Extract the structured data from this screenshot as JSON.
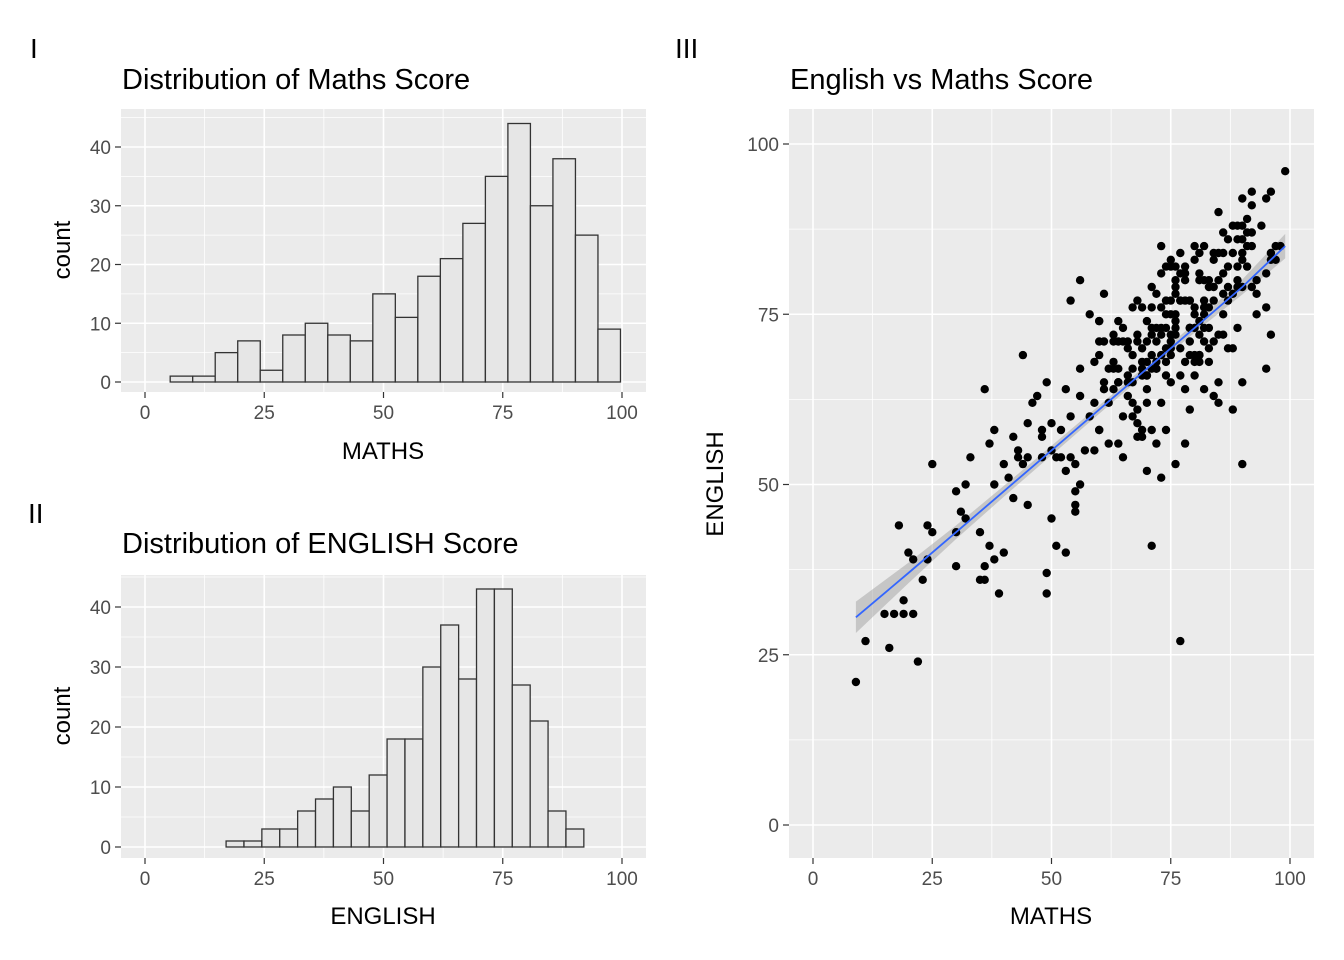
{
  "tags": [
    "I",
    "II",
    "III"
  ],
  "chart_data": [
    {
      "type": "bar",
      "subtype": "histogram",
      "tag": "I",
      "title": "Distribution of Maths Score",
      "xlabel": "MATHS",
      "ylabel": "count",
      "xlim": [
        0,
        100
      ],
      "ylim": [
        0,
        44
      ],
      "x_ticks": [
        0,
        25,
        50,
        75,
        100
      ],
      "y_ticks": [
        0,
        10,
        20,
        30,
        40
      ],
      "bin_width": 4.72,
      "bin_starts": [
        5.28,
        10.0,
        14.72,
        19.44,
        24.16,
        28.88,
        33.6,
        38.32,
        43.04,
        47.76,
        52.48,
        57.2,
        61.92,
        66.64,
        71.36,
        76.08,
        80.8,
        85.52,
        90.24,
        94.96
      ],
      "values": [
        1,
        1,
        5,
        7,
        2,
        8,
        10,
        8,
        7,
        15,
        11,
        18,
        21,
        27,
        35,
        44,
        30,
        38,
        25,
        9
      ],
      "fill": "#e6e6e6",
      "outline": "#333333",
      "grid": true,
      "legend": "none"
    },
    {
      "type": "bar",
      "subtype": "histogram",
      "tag": "II",
      "title": "Distribution of ENGLISH Score",
      "xlabel": "ENGLISH",
      "ylabel": "count",
      "xlim": [
        0,
        100
      ],
      "ylim": [
        0,
        43
      ],
      "x_ticks": [
        0,
        25,
        50,
        75,
        100
      ],
      "y_ticks": [
        0,
        10,
        20,
        30,
        40
      ],
      "bin_width": 3.75,
      "bin_starts": [
        17.0,
        20.75,
        24.5,
        28.25,
        32.0,
        35.75,
        39.5,
        43.25,
        47.0,
        50.75,
        54.5,
        58.25,
        62.0,
        65.75,
        69.5,
        73.25,
        77.0,
        80.75,
        84.5,
        88.25,
        92.0
      ],
      "values": [
        1,
        1,
        3,
        3,
        6,
        8,
        10,
        6,
        12,
        18,
        18,
        30,
        37,
        28,
        43,
        43,
        27,
        21,
        6,
        3,
        0
      ],
      "fill": "#e6e6e6",
      "outline": "#333333",
      "grid": true,
      "legend": "none"
    },
    {
      "type": "scatter",
      "tag": "III",
      "title": "English vs Maths Score",
      "xlabel": "MATHS",
      "ylabel": "ENGLISH",
      "xlim": [
        0,
        100
      ],
      "ylim": [
        0,
        100
      ],
      "x_ticks": [
        0,
        25,
        50,
        75,
        100
      ],
      "y_ticks": [
        0,
        25,
        50,
        75,
        100
      ],
      "point_color": "#000000",
      "trend_color": "#3366ff",
      "ribbon_color": "#999999",
      "grid": true,
      "legend": "none",
      "trend": {
        "x": [
          9,
          20,
          30,
          40,
          50,
          60,
          70,
          80,
          90,
          99
        ],
        "y": [
          30.5,
          37.0,
          43.0,
          49.0,
          55.0,
          61.0,
          67.0,
          73.0,
          79.0,
          85.0
        ],
        "lower": [
          28.2,
          35.5,
          42.0,
          48.2,
          54.3,
          60.4,
          66.4,
          72.3,
          77.9,
          83.2
        ],
        "upper": [
          32.8,
          38.5,
          44.0,
          49.8,
          55.7,
          61.6,
          67.6,
          73.7,
          80.1,
          86.8
        ]
      },
      "points": [
        [
          9,
          21
        ],
        [
          11,
          27
        ],
        [
          15,
          31
        ],
        [
          16,
          26
        ],
        [
          17,
          31
        ],
        [
          18,
          44
        ],
        [
          19,
          33
        ],
        [
          19,
          31
        ],
        [
          20,
          40
        ],
        [
          21,
          31
        ],
        [
          21,
          39
        ],
        [
          22,
          24
        ],
        [
          23,
          36
        ],
        [
          24,
          39
        ],
        [
          24,
          44
        ],
        [
          25,
          53
        ],
        [
          25,
          43
        ],
        [
          30,
          49
        ],
        [
          30,
          38
        ],
        [
          30,
          43
        ],
        [
          31,
          46
        ],
        [
          32,
          50
        ],
        [
          32,
          45
        ],
        [
          33,
          54
        ],
        [
          35,
          43
        ],
        [
          35,
          36
        ],
        [
          36,
          64
        ],
        [
          36,
          38
        ],
        [
          36,
          36
        ],
        [
          37,
          56
        ],
        [
          37,
          41
        ],
        [
          38,
          50
        ],
        [
          38,
          58
        ],
        [
          38,
          39
        ],
        [
          39,
          34
        ],
        [
          40,
          53
        ],
        [
          40,
          40
        ],
        [
          41,
          51
        ],
        [
          42,
          48
        ],
        [
          42,
          57
        ],
        [
          43,
          55
        ],
        [
          43,
          54
        ],
        [
          44,
          53
        ],
        [
          44,
          69
        ],
        [
          45,
          54
        ],
        [
          45,
          59
        ],
        [
          45,
          47
        ],
        [
          46,
          62
        ],
        [
          47,
          63
        ],
        [
          48,
          58
        ],
        [
          48,
          57
        ],
        [
          48,
          54
        ],
        [
          49,
          65
        ],
        [
          49,
          37
        ],
        [
          49,
          34
        ],
        [
          50,
          59
        ],
        [
          50,
          45
        ],
        [
          50,
          55
        ],
        [
          51,
          41
        ],
        [
          51,
          54
        ],
        [
          52,
          54
        ],
        [
          52,
          58
        ],
        [
          53,
          52
        ],
        [
          53,
          64
        ],
        [
          53,
          40
        ],
        [
          54,
          60
        ],
        [
          54,
          77
        ],
        [
          54,
          54
        ],
        [
          55,
          53
        ],
        [
          55,
          49
        ],
        [
          55,
          47
        ],
        [
          55,
          46
        ],
        [
          56,
          63
        ],
        [
          56,
          67
        ],
        [
          56,
          50
        ],
        [
          56,
          80
        ],
        [
          57,
          55
        ],
        [
          58,
          75
        ],
        [
          58,
          60
        ],
        [
          59,
          55
        ],
        [
          59,
          62
        ],
        [
          59,
          68
        ],
        [
          60,
          71
        ],
        [
          60,
          74
        ],
        [
          60,
          74
        ],
        [
          60,
          58
        ],
        [
          60,
          58
        ],
        [
          60,
          69
        ],
        [
          61,
          71
        ],
        [
          61,
          65
        ],
        [
          61,
          78
        ],
        [
          61,
          64
        ],
        [
          62,
          56
        ],
        [
          62,
          62
        ],
        [
          62,
          67
        ],
        [
          63,
          71
        ],
        [
          63,
          68
        ],
        [
          63,
          67
        ],
        [
          63,
          64
        ],
        [
          63,
          72
        ],
        [
          64,
          56
        ],
        [
          64,
          74
        ],
        [
          64,
          71
        ],
        [
          64,
          65
        ],
        [
          64,
          67
        ],
        [
          64,
          65
        ],
        [
          64,
          65
        ],
        [
          65,
          73
        ],
        [
          65,
          60
        ],
        [
          65,
          54
        ],
        [
          65,
          71
        ],
        [
          66,
          71
        ],
        [
          66,
          66
        ],
        [
          66,
          70
        ],
        [
          66,
          65
        ],
        [
          66,
          63
        ],
        [
          67,
          76
        ],
        [
          67,
          60
        ],
        [
          67,
          69
        ],
        [
          67,
          65
        ],
        [
          67,
          62
        ],
        [
          67,
          67
        ],
        [
          68,
          72
        ],
        [
          68,
          77
        ],
        [
          68,
          71
        ],
        [
          68,
          57
        ],
        [
          68,
          59
        ],
        [
          68,
          61
        ],
        [
          69,
          70
        ],
        [
          69,
          66
        ],
        [
          69,
          76
        ],
        [
          69,
          67
        ],
        [
          69,
          58
        ],
        [
          69,
          68
        ],
        [
          69,
          57
        ],
        [
          70,
          68
        ],
        [
          70,
          74
        ],
        [
          70,
          52
        ],
        [
          70,
          62
        ],
        [
          70,
          71
        ],
        [
          70,
          66
        ],
        [
          70,
          64
        ],
        [
          70,
          66
        ],
        [
          71,
          79
        ],
        [
          71,
          73
        ],
        [
          71,
          69
        ],
        [
          71,
          76
        ],
        [
          71,
          41
        ],
        [
          71,
          72
        ],
        [
          71,
          58
        ],
        [
          71,
          67
        ],
        [
          72,
          73
        ],
        [
          72,
          56
        ],
        [
          72,
          67
        ],
        [
          72,
          68
        ],
        [
          72,
          71
        ],
        [
          72,
          78
        ],
        [
          72,
          67
        ],
        [
          73,
          81
        ],
        [
          73,
          72
        ],
        [
          73,
          62
        ],
        [
          73,
          73
        ],
        [
          73,
          69
        ],
        [
          73,
          76
        ],
        [
          73,
          51
        ],
        [
          73,
          85
        ],
        [
          74,
          73
        ],
        [
          74,
          68
        ],
        [
          74,
          70
        ],
        [
          74,
          82
        ],
        [
          74,
          75
        ],
        [
          74,
          77
        ],
        [
          74,
          58
        ],
        [
          74,
          66
        ],
        [
          75,
          75
        ],
        [
          75,
          72
        ],
        [
          75,
          77
        ],
        [
          75,
          71
        ],
        [
          75,
          65
        ],
        [
          75,
          70
        ],
        [
          75,
          69
        ],
        [
          75,
          83
        ],
        [
          75,
          82
        ],
        [
          76,
          74
        ],
        [
          76,
          73
        ],
        [
          76,
          72
        ],
        [
          76,
          78
        ],
        [
          76,
          80
        ],
        [
          76,
          82
        ],
        [
          76,
          53
        ],
        [
          76,
          75
        ],
        [
          76,
          79
        ],
        [
          77,
          77
        ],
        [
          77,
          81
        ],
        [
          77,
          66
        ],
        [
          77,
          27
        ],
        [
          77,
          70
        ],
        [
          77,
          77
        ],
        [
          77,
          84
        ],
        [
          78,
          82
        ],
        [
          78,
          80
        ],
        [
          78,
          68
        ],
        [
          78,
          64
        ],
        [
          78,
          81
        ],
        [
          78,
          56
        ],
        [
          78,
          77
        ],
        [
          79,
          77
        ],
        [
          79,
          77
        ],
        [
          79,
          71
        ],
        [
          79,
          73
        ],
        [
          79,
          69
        ],
        [
          79,
          73
        ],
        [
          79,
          73
        ],
        [
          79,
          61
        ],
        [
          80,
          83
        ],
        [
          80,
          69
        ],
        [
          80,
          73
        ],
        [
          80,
          66
        ],
        [
          80,
          76
        ],
        [
          80,
          68
        ],
        [
          80,
          75
        ],
        [
          80,
          85
        ],
        [
          81,
          84
        ],
        [
          81,
          74
        ],
        [
          81,
          81
        ],
        [
          81,
          68
        ],
        [
          81,
          69
        ],
        [
          81,
          69
        ],
        [
          81,
          80
        ],
        [
          81,
          72
        ],
        [
          82,
          85
        ],
        [
          82,
          76
        ],
        [
          82,
          77
        ],
        [
          82,
          80
        ],
        [
          82,
          71
        ],
        [
          82,
          73
        ],
        [
          82,
          64
        ],
        [
          82,
          75
        ],
        [
          83,
          79
        ],
        [
          83,
          80
        ],
        [
          83,
          73
        ],
        [
          83,
          76
        ],
        [
          83,
          68
        ],
        [
          83,
          70
        ],
        [
          84,
          83
        ],
        [
          84,
          84
        ],
        [
          84,
          77
        ],
        [
          84,
          79
        ],
        [
          84,
          63
        ],
        [
          84,
          71
        ],
        [
          85,
          90
        ],
        [
          85,
          84
        ],
        [
          85,
          80
        ],
        [
          85,
          72
        ],
        [
          85,
          62
        ],
        [
          85,
          65
        ],
        [
          86,
          75
        ],
        [
          86,
          84
        ],
        [
          86,
          81
        ],
        [
          86,
          78
        ],
        [
          86,
          72
        ],
        [
          86,
          87
        ],
        [
          87,
          86
        ],
        [
          87,
          70
        ],
        [
          87,
          79
        ],
        [
          87,
          77
        ],
        [
          87,
          82
        ],
        [
          88,
          61
        ],
        [
          88,
          78
        ],
        [
          88,
          88
        ],
        [
          88,
          70
        ],
        [
          88,
          84
        ],
        [
          89,
          80
        ],
        [
          89,
          73
        ],
        [
          89,
          86
        ],
        [
          89,
          79
        ],
        [
          89,
          82
        ],
        [
          89,
          88
        ],
        [
          90,
          92
        ],
        [
          90,
          88
        ],
        [
          90,
          83
        ],
        [
          90,
          53
        ],
        [
          90,
          84
        ],
        [
          90,
          65
        ],
        [
          90,
          79
        ],
        [
          90,
          86
        ],
        [
          91,
          82
        ],
        [
          91,
          87
        ],
        [
          91,
          89
        ],
        [
          91,
          85
        ],
        [
          92,
          87
        ],
        [
          92,
          93
        ],
        [
          92,
          85
        ],
        [
          92,
          79
        ],
        [
          92,
          91
        ],
        [
          93,
          75
        ],
        [
          93,
          80
        ],
        [
          93,
          78
        ],
        [
          94,
          88
        ],
        [
          95,
          92
        ],
        [
          95,
          81
        ],
        [
          95,
          67
        ],
        [
          95,
          76
        ],
        [
          96,
          72
        ],
        [
          96,
          93
        ],
        [
          96,
          84
        ],
        [
          96,
          83
        ],
        [
          97,
          83
        ],
        [
          97,
          85
        ],
        [
          98,
          85
        ],
        [
          99,
          96
        ]
      ]
    }
  ]
}
